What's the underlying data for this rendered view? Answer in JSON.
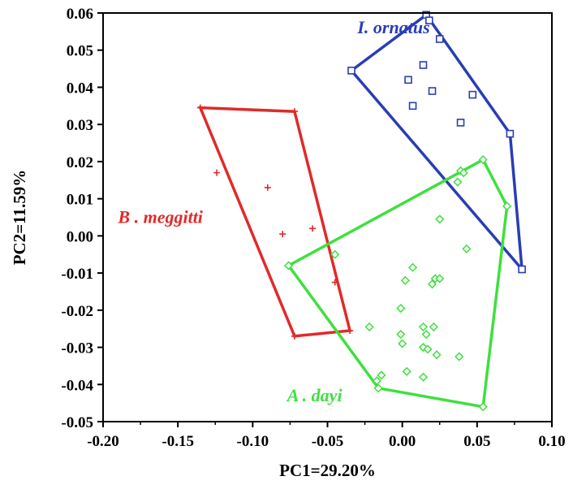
{
  "chart_data": {
    "type": "scatter",
    "title": "",
    "xlabel": "PC1=29.20%",
    "ylabel": "PC2=11.59%",
    "xlim": [
      -0.2,
      0.1
    ],
    "ylim": [
      -0.05,
      0.06
    ],
    "x_ticks": [
      "-0.20",
      "-0.15",
      "-0.10",
      "-0.05",
      "0.00",
      "0.05",
      "0.10"
    ],
    "y_ticks": [
      "0.06",
      "0.05",
      "0.04",
      "0.03",
      "0.02",
      "0.01",
      "0.00",
      "-0.01",
      "-0.02",
      "-0.03",
      "-0.04",
      "-0.05"
    ],
    "grid": false,
    "legend": "none",
    "series": [
      {
        "name": "I. ornatus",
        "color": "#2a3db4",
        "marker": "square",
        "points": [
          [
            0.016,
            0.0595
          ],
          [
            0.018,
            0.058
          ],
          [
            0.025,
            0.053
          ],
          [
            -0.034,
            0.0445
          ],
          [
            0.014,
            0.046
          ],
          [
            0.004,
            0.042
          ],
          [
            0.02,
            0.039
          ],
          [
            0.047,
            0.038
          ],
          [
            0.007,
            0.035
          ],
          [
            0.039,
            0.0305
          ],
          [
            0.072,
            0.0275
          ],
          [
            0.08,
            -0.009
          ]
        ],
        "hull": [
          [
            0.016,
            0.0595
          ],
          [
            0.072,
            0.0275
          ],
          [
            0.08,
            -0.009
          ],
          [
            -0.034,
            0.0445
          ]
        ]
      },
      {
        "name": "B . meggitti",
        "color": "#e02a2a",
        "marker": "plus",
        "points": [
          [
            -0.135,
            0.0345
          ],
          [
            -0.072,
            0.0335
          ],
          [
            -0.124,
            0.017
          ],
          [
            -0.09,
            0.013
          ],
          [
            -0.08,
            0.0005
          ],
          [
            -0.06,
            0.002
          ],
          [
            -0.045,
            -0.0125
          ],
          [
            -0.035,
            -0.0255
          ],
          [
            -0.072,
            -0.027
          ]
        ],
        "hull": [
          [
            -0.135,
            0.0345
          ],
          [
            -0.072,
            0.0335
          ],
          [
            -0.035,
            -0.0255
          ],
          [
            -0.072,
            -0.027
          ]
        ]
      },
      {
        "name": "A . dayi",
        "color": "#3ee03e",
        "marker": "diamond",
        "points": [
          [
            0.054,
            0.0205
          ],
          [
            0.039,
            0.0175
          ],
          [
            0.041,
            0.017
          ],
          [
            0.037,
            0.0145
          ],
          [
            0.07,
            0.008
          ],
          [
            0.025,
            0.0045
          ],
          [
            0.043,
            -0.0035
          ],
          [
            -0.045,
            -0.005
          ],
          [
            -0.076,
            -0.008
          ],
          [
            0.007,
            -0.0085
          ],
          [
            0.002,
            -0.012
          ],
          [
            0.022,
            -0.0115
          ],
          [
            0.025,
            -0.0115
          ],
          [
            0.02,
            -0.013
          ],
          [
            -0.001,
            -0.0195
          ],
          [
            -0.022,
            -0.0245
          ],
          [
            0.014,
            -0.0245
          ],
          [
            0.021,
            -0.0245
          ],
          [
            -0.001,
            -0.0265
          ],
          [
            0.016,
            -0.0265
          ],
          [
            0.0,
            -0.029
          ],
          [
            0.014,
            -0.03
          ],
          [
            0.017,
            -0.0305
          ],
          [
            0.023,
            -0.032
          ],
          [
            0.038,
            -0.0325
          ],
          [
            0.003,
            -0.0365
          ],
          [
            0.014,
            -0.038
          ],
          [
            -0.014,
            -0.0375
          ],
          [
            -0.017,
            -0.039
          ],
          [
            -0.016,
            -0.041
          ],
          [
            0.054,
            -0.046
          ]
        ],
        "hull": [
          [
            0.054,
            0.0205
          ],
          [
            0.07,
            0.008
          ],
          [
            0.054,
            -0.046
          ],
          [
            -0.016,
            -0.041
          ],
          [
            -0.076,
            -0.008
          ]
        ]
      }
    ],
    "annotations": [
      {
        "text": "I. ornatus",
        "series": 0,
        "x": -0.03,
        "y": 0.0545
      },
      {
        "text": "B . meggitti",
        "series": 1,
        "x": -0.19,
        "y": 0.0035
      },
      {
        "text": "A . dayi",
        "series": 2,
        "x": -0.077,
        "y": -0.0445
      }
    ]
  }
}
